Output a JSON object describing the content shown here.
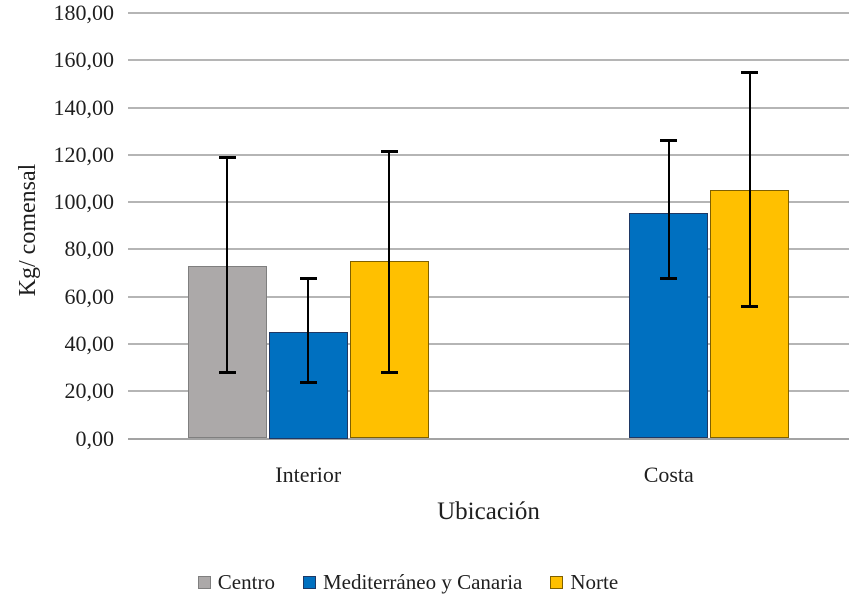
{
  "chart_data": {
    "type": "bar",
    "title": "",
    "categories": [
      "Interior",
      "Costa"
    ],
    "series": [
      {
        "name": "Centro",
        "color": "#aca9a9",
        "border_color": "#7f7f7f",
        "values": [
          73,
          null
        ],
        "err_low": [
          28,
          null
        ],
        "err_high": [
          119,
          null
        ]
      },
      {
        "name": "Mediterráneo y Canaria",
        "color": "#0070c0",
        "border_color": "#1f3864",
        "values": [
          45,
          95.5
        ],
        "err_low": [
          23.5,
          67.5
        ],
        "err_high": [
          67.5,
          126
        ]
      },
      {
        "name": "Norte",
        "color": "#ffc000",
        "border_color": "#7f6000",
        "values": [
          75,
          105
        ],
        "err_low": [
          28,
          56
        ],
        "err_high": [
          121.5,
          155
        ]
      }
    ],
    "xlabel": "Ubicación",
    "ylabel": "Kg/ comensal",
    "ylim": [
      0,
      180
    ],
    "ytick_step": 20,
    "ytick_labels": [
      "0,00",
      "20,00",
      "40,00",
      "60,00",
      "80,00",
      "100,00",
      "120,00",
      "140,00",
      "160,00",
      "180,00"
    ],
    "error_bar_color": "#000000",
    "grid": true,
    "legend_position": "bottom"
  }
}
